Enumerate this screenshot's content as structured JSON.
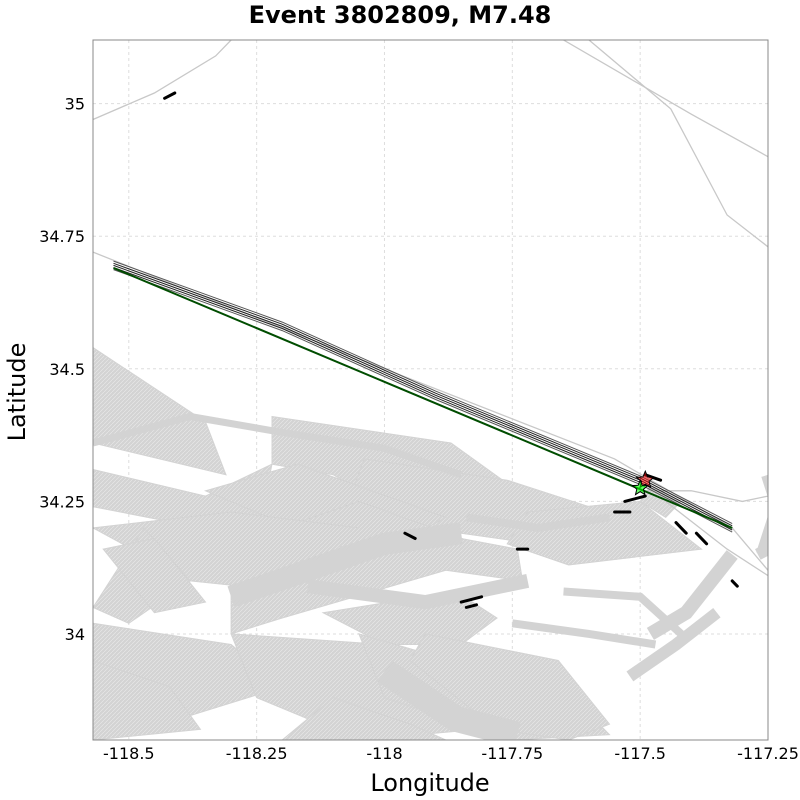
{
  "title": "Event 3802809, M7.48",
  "x_axis": {
    "label": "Longitude",
    "range": [
      -118.57,
      -117.25
    ],
    "ticks": [
      {
        "value": -118.5,
        "label": "-118.5"
      },
      {
        "value": -118.25,
        "label": "-118.25"
      },
      {
        "value": -118.0,
        "label": "-118"
      },
      {
        "value": -117.75,
        "label": "-117.75"
      },
      {
        "value": -117.5,
        "label": "-117.5"
      },
      {
        "value": -117.25,
        "label": "-117.25"
      }
    ]
  },
  "y_axis": {
    "label": "Latitude",
    "range": [
      33.8,
      35.12
    ],
    "ticks": [
      {
        "value": 34.0,
        "label": "34"
      },
      {
        "value": 34.25,
        "label": "34.25"
      },
      {
        "value": 34.5,
        "label": "34.5"
      },
      {
        "value": 34.75,
        "label": "34.75"
      },
      {
        "value": 35.0,
        "label": "35"
      }
    ]
  },
  "grid": true,
  "colors": {
    "fault_patch": "#d3d3d3",
    "road": "#c8c8c8",
    "rupture_trace": "#222222",
    "rupture_trace_edge": "#555555",
    "surface_trace": "#004d00",
    "hypocenter_star": "#ff0000",
    "centroid_star": "#00ff00",
    "grid": "#dddddd"
  },
  "map_data": {
    "roads": [
      [
        [
          -118.57,
          34.97
        ],
        [
          -118.45,
          35.02
        ],
        [
          -118.33,
          35.09
        ],
        [
          -118.3,
          35.12
        ]
      ],
      [
        [
          -117.65,
          35.12
        ],
        [
          -117.4,
          34.98
        ],
        [
          -117.25,
          34.9
        ]
      ],
      [
        [
          -117.6,
          35.12
        ],
        [
          -117.44,
          34.99
        ],
        [
          -117.33,
          34.79
        ],
        [
          -117.25,
          34.73
        ]
      ],
      [
        [
          -118.57,
          34.72
        ],
        [
          -118.0,
          34.5
        ],
        [
          -117.55,
          34.33
        ],
        [
          -117.32,
          34.2
        ],
        [
          -117.25,
          34.12
        ]
      ],
      [
        [
          -117.45,
          34.25
        ],
        [
          -117.33,
          34.16
        ],
        [
          -117.25,
          34.11
        ]
      ],
      [
        [
          -117.5,
          34.27
        ],
        [
          -117.4,
          34.27
        ],
        [
          -117.3,
          34.25
        ],
        [
          -117.25,
          34.26
        ]
      ]
    ],
    "fault_patches": [
      [
        [
          -118.57,
          34.54
        ],
        [
          -118.35,
          34.4
        ],
        [
          -118.31,
          34.3
        ],
        [
          -118.57,
          34.36
        ]
      ],
      [
        [
          -118.57,
          34.31
        ],
        [
          -118.35,
          34.26
        ],
        [
          -118.22,
          34.32
        ],
        [
          -118.25,
          34.18
        ],
        [
          -118.57,
          34.24
        ]
      ],
      [
        [
          -118.22,
          34.41
        ],
        [
          -117.87,
          34.36
        ],
        [
          -117.74,
          34.27
        ],
        [
          -117.92,
          34.2
        ],
        [
          -118.1,
          34.3
        ],
        [
          -118.22,
          34.32
        ]
      ],
      [
        [
          -118.04,
          34.33
        ],
        [
          -117.76,
          34.29
        ],
        [
          -117.6,
          34.24
        ],
        [
          -117.63,
          34.16
        ],
        [
          -117.85,
          34.19
        ],
        [
          -118.07,
          34.25
        ]
      ],
      [
        [
          -117.72,
          34.23
        ],
        [
          -117.5,
          34.25
        ],
        [
          -117.38,
          34.16
        ],
        [
          -117.64,
          34.13
        ],
        [
          -117.76,
          34.17
        ]
      ],
      [
        [
          -118.35,
          34.27
        ],
        [
          -118.03,
          34.14
        ],
        [
          -117.88,
          34.22
        ],
        [
          -118.17,
          34.32
        ]
      ],
      [
        [
          -118.2,
          34.2
        ],
        [
          -117.97,
          34.13
        ],
        [
          -117.82,
          34.17
        ],
        [
          -118.05,
          34.25
        ]
      ],
      [
        [
          -118.57,
          34.2
        ],
        [
          -118.38,
          34.1
        ],
        [
          -118.18,
          34.08
        ],
        [
          -118.05,
          34.2
        ],
        [
          -118.3,
          34.23
        ]
      ],
      [
        [
          -118.47,
          34.2
        ],
        [
          -118.38,
          34.1
        ],
        [
          -118.5,
          34.02
        ],
        [
          -118.57,
          34.05
        ]
      ],
      [
        [
          -118.3,
          34.08
        ],
        [
          -118.05,
          34.16
        ],
        [
          -117.85,
          34.18
        ],
        [
          -117.74,
          34.16
        ],
        [
          -117.73,
          34.1
        ],
        [
          -117.88,
          34.12
        ],
        [
          -118.2,
          34.03
        ],
        [
          -118.3,
          34.0
        ]
      ],
      [
        [
          -118.12,
          34.04
        ],
        [
          -117.86,
          34.08
        ],
        [
          -117.78,
          34.03
        ],
        [
          -117.85,
          33.98
        ],
        [
          -118.0,
          33.98
        ]
      ],
      [
        [
          -118.57,
          34.02
        ],
        [
          -118.3,
          33.98
        ],
        [
          -118.2,
          33.9
        ],
        [
          -118.4,
          33.84
        ],
        [
          -118.57,
          33.8
        ]
      ],
      [
        [
          -118.3,
          34.0
        ],
        [
          -118.0,
          33.98
        ],
        [
          -117.85,
          33.92
        ],
        [
          -117.7,
          33.83
        ],
        [
          -118.05,
          33.8
        ],
        [
          -118.25,
          33.88
        ]
      ],
      [
        [
          -118.05,
          34.0
        ],
        [
          -117.8,
          33.93
        ],
        [
          -117.6,
          33.85
        ],
        [
          -117.56,
          33.81
        ],
        [
          -117.75,
          33.8
        ],
        [
          -118.0,
          33.88
        ]
      ],
      [
        [
          -117.92,
          34.0
        ],
        [
          -117.66,
          33.95
        ],
        [
          -117.56,
          33.83
        ],
        [
          -117.64,
          33.8
        ],
        [
          -117.78,
          33.82
        ],
        [
          -117.95,
          33.95
        ]
      ],
      [
        [
          -118.57,
          33.95
        ],
        [
          -118.42,
          33.9
        ],
        [
          -118.36,
          33.82
        ],
        [
          -118.57,
          33.8
        ]
      ],
      [
        [
          -118.55,
          34.16
        ],
        [
          -118.45,
          34.18
        ],
        [
          -118.35,
          34.06
        ],
        [
          -118.45,
          34.04
        ]
      ],
      [
        [
          -118.1,
          33.88
        ],
        [
          -117.95,
          33.83
        ],
        [
          -117.88,
          33.8
        ],
        [
          -118.2,
          33.8
        ]
      ],
      [
        [
          -117.48,
          34.28
        ],
        [
          -117.42,
          34.25
        ],
        [
          -117.45,
          34.22
        ],
        [
          -117.5,
          34.25
        ]
      ]
    ],
    "fault_strips": [
      {
        "path": [
          [
            -118.57,
            34.36
          ],
          [
            -118.38,
            34.41
          ],
          [
            -118.2,
            34.38
          ],
          [
            -118.0,
            34.35
          ],
          [
            -117.85,
            34.3
          ]
        ],
        "width": 7
      },
      {
        "path": [
          [
            -118.3,
            34.07
          ],
          [
            -118.15,
            34.12
          ],
          [
            -118.0,
            34.17
          ],
          [
            -117.85,
            34.19
          ]
        ],
        "width": 22
      },
      {
        "path": [
          [
            -118.15,
            34.09
          ],
          [
            -117.92,
            34.06
          ],
          [
            -117.72,
            34.1
          ]
        ],
        "width": 14
      },
      {
        "path": [
          [
            -117.84,
            34.22
          ],
          [
            -117.7,
            34.2
          ],
          [
            -117.56,
            34.22
          ]
        ],
        "width": 8
      },
      {
        "path": [
          [
            -117.65,
            34.08
          ],
          [
            -117.5,
            34.07
          ],
          [
            -117.42,
            34.0
          ]
        ],
        "width": 8
      },
      {
        "path": [
          [
            -117.75,
            34.02
          ],
          [
            -117.6,
            34.0
          ],
          [
            -117.47,
            33.98
          ]
        ],
        "width": 8
      },
      {
        "path": [
          [
            -117.48,
            34.0
          ],
          [
            -117.41,
            34.04
          ],
          [
            -117.32,
            34.15
          ]
        ],
        "width": 14
      },
      {
        "path": [
          [
            -117.52,
            33.92
          ],
          [
            -117.43,
            33.98
          ],
          [
            -117.35,
            34.04
          ]
        ],
        "width": 12
      },
      {
        "path": [
          [
            -117.25,
            34.3
          ],
          [
            -117.23,
            34.24
          ],
          [
            -117.26,
            34.15
          ]
        ],
        "width": 14
      },
      {
        "path": [
          [
            -117.27,
            34.15
          ],
          [
            -117.25,
            34.16
          ]
        ],
        "width": 12
      },
      {
        "path": [
          [
            -118.0,
            33.93
          ],
          [
            -117.86,
            33.84
          ],
          [
            -117.74,
            33.81
          ]
        ],
        "width": 26
      }
    ],
    "rupture_trace": [
      [
        -118.53,
        34.695
      ],
      [
        -118.2,
        34.58
      ],
      [
        -117.9,
        34.45
      ],
      [
        -117.65,
        34.35
      ],
      [
        -117.5,
        34.29
      ],
      [
        -117.32,
        34.2
      ]
    ],
    "rupture_trace_offsets": [
      -0.008,
      -0.004,
      0.0,
      0.004,
      0.008
    ],
    "surface_trace": [
      [
        -118.53,
        34.69
      ],
      [
        -117.32,
        34.2
      ]
    ],
    "small_segments": [
      [
        [
          -118.43,
          35.01
        ],
        [
          -118.41,
          35.02
        ]
      ],
      [
        [
          -117.53,
          34.25
        ],
        [
          -117.49,
          34.26
        ]
      ],
      [
        [
          -117.49,
          34.3
        ],
        [
          -117.46,
          34.29
        ]
      ],
      [
        [
          -117.55,
          34.23
        ],
        [
          -117.52,
          34.23
        ]
      ],
      [
        [
          -117.43,
          34.21
        ],
        [
          -117.41,
          34.19
        ]
      ],
      [
        [
          -117.39,
          34.19
        ],
        [
          -117.37,
          34.17
        ]
      ],
      [
        [
          -117.32,
          34.1
        ],
        [
          -117.31,
          34.09
        ]
      ],
      [
        [
          -117.96,
          34.19
        ],
        [
          -117.94,
          34.18
        ]
      ],
      [
        [
          -117.74,
          34.16
        ],
        [
          -117.72,
          34.16
        ]
      ],
      [
        [
          -117.85,
          34.06
        ],
        [
          -117.81,
          34.07
        ]
      ],
      [
        [
          -117.84,
          34.05
        ],
        [
          -117.82,
          34.055
        ]
      ]
    ],
    "hypocenter": [
      -117.49,
      34.29
    ],
    "centroid": [
      -117.5,
      34.275
    ]
  }
}
